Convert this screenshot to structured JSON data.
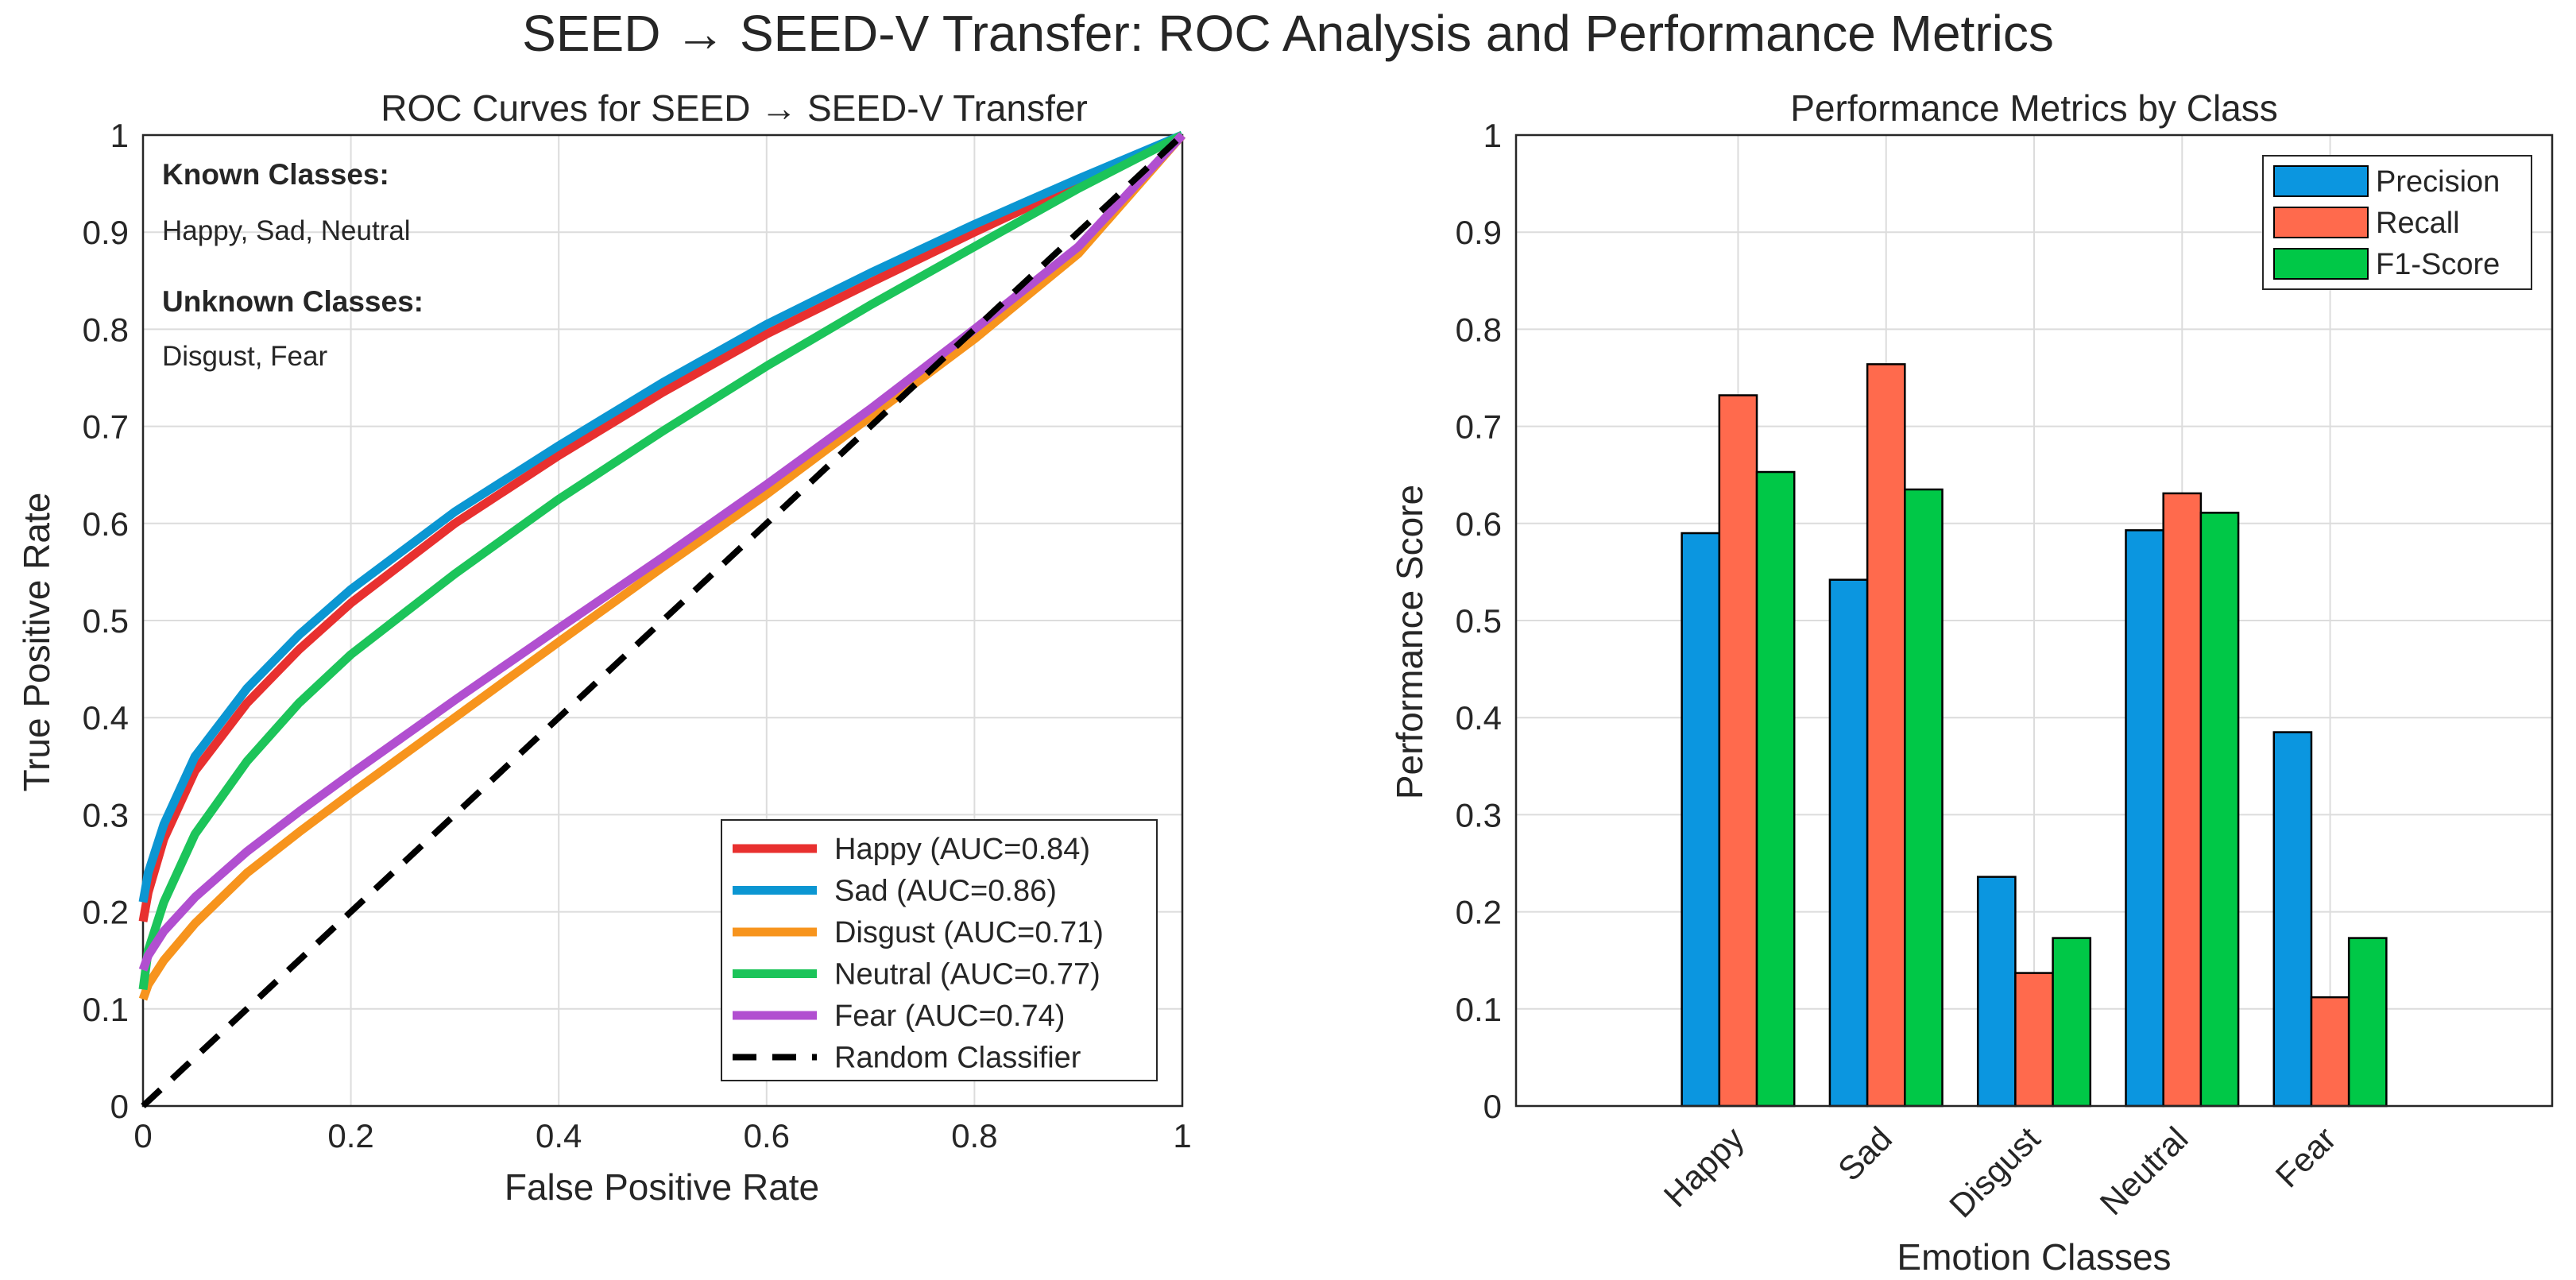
{
  "figure": {
    "title": "SEED → SEED-V Transfer: ROC Analysis and Performance Metrics"
  },
  "chart_data": [
    {
      "type": "line",
      "title": "ROC Curves for SEED → SEED-V Transfer",
      "xlabel": "False Positive Rate",
      "ylabel": "True Positive Rate",
      "xlim": [
        0,
        1
      ],
      "ylim": [
        0,
        1
      ],
      "xticks": [
        "0",
        "0.2",
        "0.4",
        "0.6",
        "0.8",
        "1"
      ],
      "yticks": [
        "0",
        "0.1",
        "0.2",
        "0.3",
        "0.4",
        "0.5",
        "0.6",
        "0.7",
        "0.8",
        "0.9",
        "1"
      ],
      "grid": true,
      "legend_position": "bottom-right",
      "annotations": {
        "known_heading": "Known Classes:",
        "known_list": "Happy, Sad, Neutral",
        "unknown_heading": "Unknown Classes:",
        "unknown_list": "Disgust, Fear",
        "known_color": "#1414e6",
        "unknown_color": "#e61414"
      },
      "series": [
        {
          "name": "Happy (AUC=0.84)",
          "color": "#e8302f",
          "dashed": false,
          "x": [
            0,
            0.005,
            0.02,
            0.05,
            0.1,
            0.15,
            0.2,
            0.3,
            0.4,
            0.5,
            0.6,
            0.7,
            0.8,
            0.9,
            1
          ],
          "y": [
            0.19,
            0.22,
            0.275,
            0.345,
            0.415,
            0.47,
            0.518,
            0.6,
            0.67,
            0.735,
            0.795,
            0.848,
            0.9,
            0.95,
            1
          ]
        },
        {
          "name": "Sad (AUC=0.86)",
          "color": "#0b96d2",
          "dashed": false,
          "x": [
            0,
            0.005,
            0.02,
            0.05,
            0.1,
            0.15,
            0.2,
            0.3,
            0.4,
            0.5,
            0.6,
            0.7,
            0.8,
            0.9,
            1
          ],
          "y": [
            0.21,
            0.24,
            0.29,
            0.36,
            0.43,
            0.485,
            0.532,
            0.612,
            0.68,
            0.745,
            0.805,
            0.858,
            0.908,
            0.955,
            1
          ]
        },
        {
          "name": "Disgust (AUC=0.71)",
          "color": "#f7941d",
          "dashed": false,
          "x": [
            0,
            0.005,
            0.02,
            0.05,
            0.1,
            0.15,
            0.2,
            0.3,
            0.4,
            0.5,
            0.6,
            0.7,
            0.8,
            0.9,
            1
          ],
          "y": [
            0.11,
            0.125,
            0.15,
            0.188,
            0.24,
            0.282,
            0.322,
            0.4,
            0.478,
            0.555,
            0.63,
            0.71,
            0.79,
            0.878,
            1
          ]
        },
        {
          "name": "Neutral (AUC=0.77)",
          "color": "#1cc45a",
          "dashed": false,
          "x": [
            0,
            0.005,
            0.02,
            0.05,
            0.1,
            0.15,
            0.2,
            0.3,
            0.4,
            0.5,
            0.6,
            0.7,
            0.8,
            0.9,
            1
          ],
          "y": [
            0.12,
            0.16,
            0.21,
            0.28,
            0.355,
            0.415,
            0.465,
            0.548,
            0.625,
            0.695,
            0.762,
            0.825,
            0.885,
            0.945,
            1
          ]
        },
        {
          "name": "Fear (AUC=0.74)",
          "color": "#b14fd0",
          "dashed": false,
          "x": [
            0,
            0.005,
            0.02,
            0.05,
            0.1,
            0.15,
            0.2,
            0.3,
            0.4,
            0.5,
            0.6,
            0.7,
            0.8,
            0.9,
            1
          ],
          "y": [
            0.14,
            0.155,
            0.18,
            0.215,
            0.262,
            0.303,
            0.342,
            0.418,
            0.492,
            0.565,
            0.64,
            0.718,
            0.8,
            0.885,
            1
          ]
        },
        {
          "name": "Random Classifier",
          "color": "#000000",
          "dashed": true,
          "x": [
            0,
            1
          ],
          "y": [
            0,
            1
          ]
        }
      ]
    },
    {
      "type": "bar",
      "title": "Performance Metrics by Class",
      "xlabel": "Emotion Classes",
      "ylabel": "Performance Score",
      "ylim": [
        0,
        1
      ],
      "yticks": [
        "0",
        "0.1",
        "0.2",
        "0.3",
        "0.4",
        "0.5",
        "0.6",
        "0.7",
        "0.8",
        "0.9",
        "1"
      ],
      "grid": true,
      "legend_position": "top-right",
      "categories": [
        "Happy",
        "Sad",
        "Disgust",
        "Neutral",
        "Fear"
      ],
      "series": [
        {
          "name": "Precision",
          "color": "#0b96e0",
          "values": [
            0.59,
            0.542,
            0.236,
            0.593,
            0.385
          ]
        },
        {
          "name": "Recall",
          "color": "#ff6a4d",
          "values": [
            0.732,
            0.764,
            0.137,
            0.631,
            0.112
          ]
        },
        {
          "name": "F1-Score",
          "color": "#00c847",
          "values": [
            0.653,
            0.635,
            0.173,
            0.611,
            0.173
          ]
        }
      ]
    }
  ]
}
